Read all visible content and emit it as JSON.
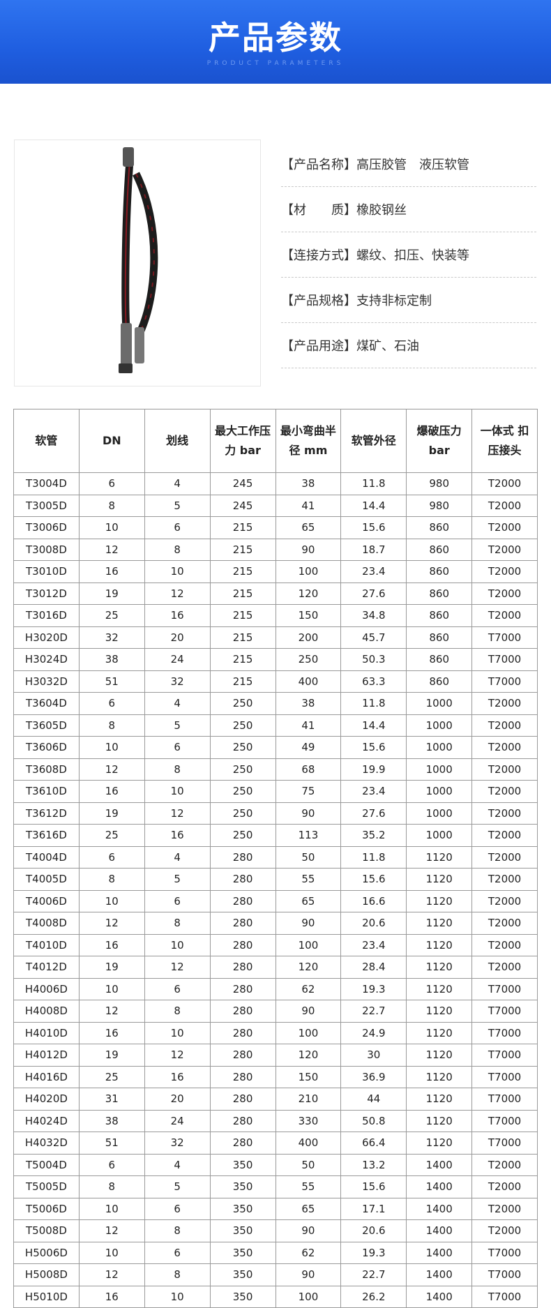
{
  "banner": {
    "title": "产品参数",
    "subtitle": "PRODUCT PARAMETERS",
    "color": "#2466e6"
  },
  "info": [
    {
      "key": "【产品名称】",
      "value": "高压胶管　液压软管"
    },
    {
      "key": "【材　　质】",
      "value": "橡胶钢丝"
    },
    {
      "key": "【连接方式】",
      "value": "螺纹、扣压、快装等"
    },
    {
      "key": "【产品规格】",
      "value": "支持非标定制"
    },
    {
      "key": "【产品用途】",
      "value": "煤矿、石油"
    }
  ],
  "table": {
    "headers": [
      "软管",
      "DN",
      "划线",
      "最大工作压力 bar",
      "最小弯曲半径 mm",
      "软管外径",
      "爆破压力bar",
      "一体式 扣压接头"
    ],
    "rows": [
      [
        "T3004D",
        "6",
        "4",
        "245",
        "38",
        "11.8",
        "980",
        "T2000"
      ],
      [
        "T3005D",
        "8",
        "5",
        "245",
        "41",
        "14.4",
        "980",
        "T2000"
      ],
      [
        "T3006D",
        "10",
        "6",
        "215",
        "65",
        "15.6",
        "860",
        "T2000"
      ],
      [
        "T3008D",
        "12",
        "8",
        "215",
        "90",
        "18.7",
        "860",
        "T2000"
      ],
      [
        "T3010D",
        "16",
        "10",
        "215",
        "100",
        "23.4",
        "860",
        "T2000"
      ],
      [
        "T3012D",
        "19",
        "12",
        "215",
        "120",
        "27.6",
        "860",
        "T2000"
      ],
      [
        "T3016D",
        "25",
        "16",
        "215",
        "150",
        "34.8",
        "860",
        "T2000"
      ],
      [
        "H3020D",
        "32",
        "20",
        "215",
        "200",
        "45.7",
        "860",
        "T7000"
      ],
      [
        "H3024D",
        "38",
        "24",
        "215",
        "250",
        "50.3",
        "860",
        "T7000"
      ],
      [
        "H3032D",
        "51",
        "32",
        "215",
        "400",
        "63.3",
        "860",
        "T7000"
      ],
      [
        "T3604D",
        "6",
        "4",
        "250",
        "38",
        "11.8",
        "1000",
        "T2000"
      ],
      [
        "T3605D",
        "8",
        "5",
        "250",
        "41",
        "14.4",
        "1000",
        "T2000"
      ],
      [
        "T3606D",
        "10",
        "6",
        "250",
        "49",
        "15.6",
        "1000",
        "T2000"
      ],
      [
        "T3608D",
        "12",
        "8",
        "250",
        "68",
        "19.9",
        "1000",
        "T2000"
      ],
      [
        "T3610D",
        "16",
        "10",
        "250",
        "75",
        "23.4",
        "1000",
        "T2000"
      ],
      [
        "T3612D",
        "19",
        "12",
        "250",
        "90",
        "27.6",
        "1000",
        "T2000"
      ],
      [
        "T3616D",
        "25",
        "16",
        "250",
        "113",
        "35.2",
        "1000",
        "T2000"
      ],
      [
        "T4004D",
        "6",
        "4",
        "280",
        "50",
        "11.8",
        "1120",
        "T2000"
      ],
      [
        "T4005D",
        "8",
        "5",
        "280",
        "55",
        "15.6",
        "1120",
        "T2000"
      ],
      [
        "T4006D",
        "10",
        "6",
        "280",
        "65",
        "16.6",
        "1120",
        "T2000"
      ],
      [
        "T4008D",
        "12",
        "8",
        "280",
        "90",
        "20.6",
        "1120",
        "T2000"
      ],
      [
        "T4010D",
        "16",
        "10",
        "280",
        "100",
        "23.4",
        "1120",
        "T2000"
      ],
      [
        "T4012D",
        "19",
        "12",
        "280",
        "120",
        "28.4",
        "1120",
        "T2000"
      ],
      [
        "H4006D",
        "10",
        "6",
        "280",
        "62",
        "19.3",
        "1120",
        "T7000"
      ],
      [
        "H4008D",
        "12",
        "8",
        "280",
        "90",
        "22.7",
        "1120",
        "T7000"
      ],
      [
        "H4010D",
        "16",
        "10",
        "280",
        "100",
        "24.9",
        "1120",
        "T7000"
      ],
      [
        "H4012D",
        "19",
        "12",
        "280",
        "120",
        "30",
        "1120",
        "T7000"
      ],
      [
        "H4016D",
        "25",
        "16",
        "280",
        "150",
        "36.9",
        "1120",
        "T7000"
      ],
      [
        "H4020D",
        "31",
        "20",
        "280",
        "210",
        "44",
        "1120",
        "T7000"
      ],
      [
        "H4024D",
        "38",
        "24",
        "280",
        "330",
        "50.8",
        "1120",
        "T7000"
      ],
      [
        "H4032D",
        "51",
        "32",
        "280",
        "400",
        "66.4",
        "1120",
        "T7000"
      ],
      [
        "T5004D",
        "6",
        "4",
        "350",
        "50",
        "13.2",
        "1400",
        "T2000"
      ],
      [
        "T5005D",
        "8",
        "5",
        "350",
        "55",
        "15.6",
        "1400",
        "T2000"
      ],
      [
        "T5006D",
        "10",
        "6",
        "350",
        "65",
        "17.1",
        "1400",
        "T2000"
      ],
      [
        "T5008D",
        "12",
        "8",
        "350",
        "90",
        "20.6",
        "1400",
        "T2000"
      ],
      [
        "H5006D",
        "10",
        "6",
        "350",
        "62",
        "19.3",
        "1400",
        "T7000"
      ],
      [
        "H5008D",
        "12",
        "8",
        "350",
        "90",
        "22.7",
        "1400",
        "T7000"
      ],
      [
        "H5010D",
        "16",
        "10",
        "350",
        "100",
        "26.2",
        "1400",
        "T7000"
      ]
    ]
  }
}
